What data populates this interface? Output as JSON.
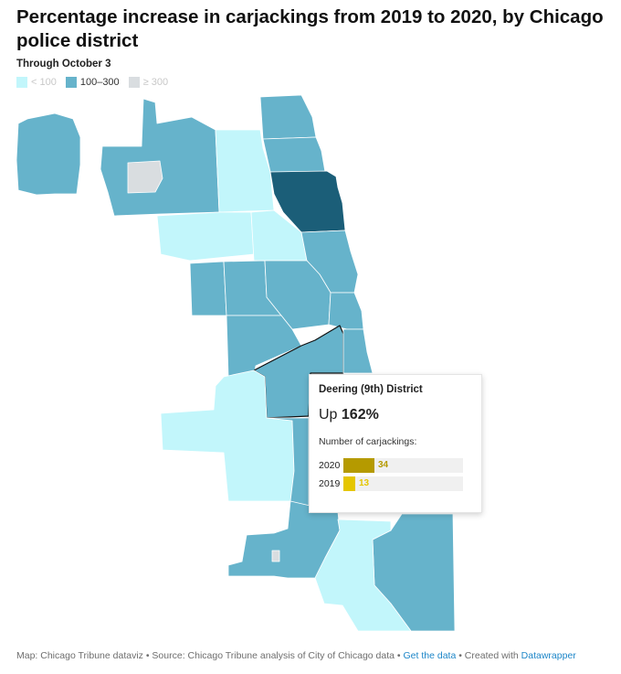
{
  "title": "Percentage increase in carjackings from 2019 to 2020, by Chicago police district",
  "subtitle": "Through October 3",
  "legend": [
    {
      "label": "< 100",
      "color": "#c2f6fb",
      "faint": true
    },
    {
      "label": "100–300",
      "color": "#66b3cb",
      "faint": false
    },
    {
      "label": "≥ 300",
      "color": "#d9dde0",
      "faint": true
    }
  ],
  "colors": {
    "low": "#c2f6fb",
    "mid": "#66b3cb",
    "high": "#d9dde0",
    "selected": "#1b5e78",
    "border": "#ffffff",
    "bar_2020": "#b59a00",
    "bar_2019": "#e5c600"
  },
  "tooltip": {
    "district": "Deering (9th) District",
    "change_prefix": "Up ",
    "change_value": "162%",
    "bars_label": "Number of carjackings:",
    "bars": [
      {
        "year": "2020",
        "value": 34
      },
      {
        "year": "2019",
        "value": 13
      }
    ],
    "bar_max": 131
  },
  "footer": {
    "prefix": "Map: Chicago Tribune dataviz • Source: Chicago Tribune analysis of City of Chicago data • ",
    "link1": "Get the data",
    "middle": " • Created with ",
    "link2": "Datawrapper"
  }
}
